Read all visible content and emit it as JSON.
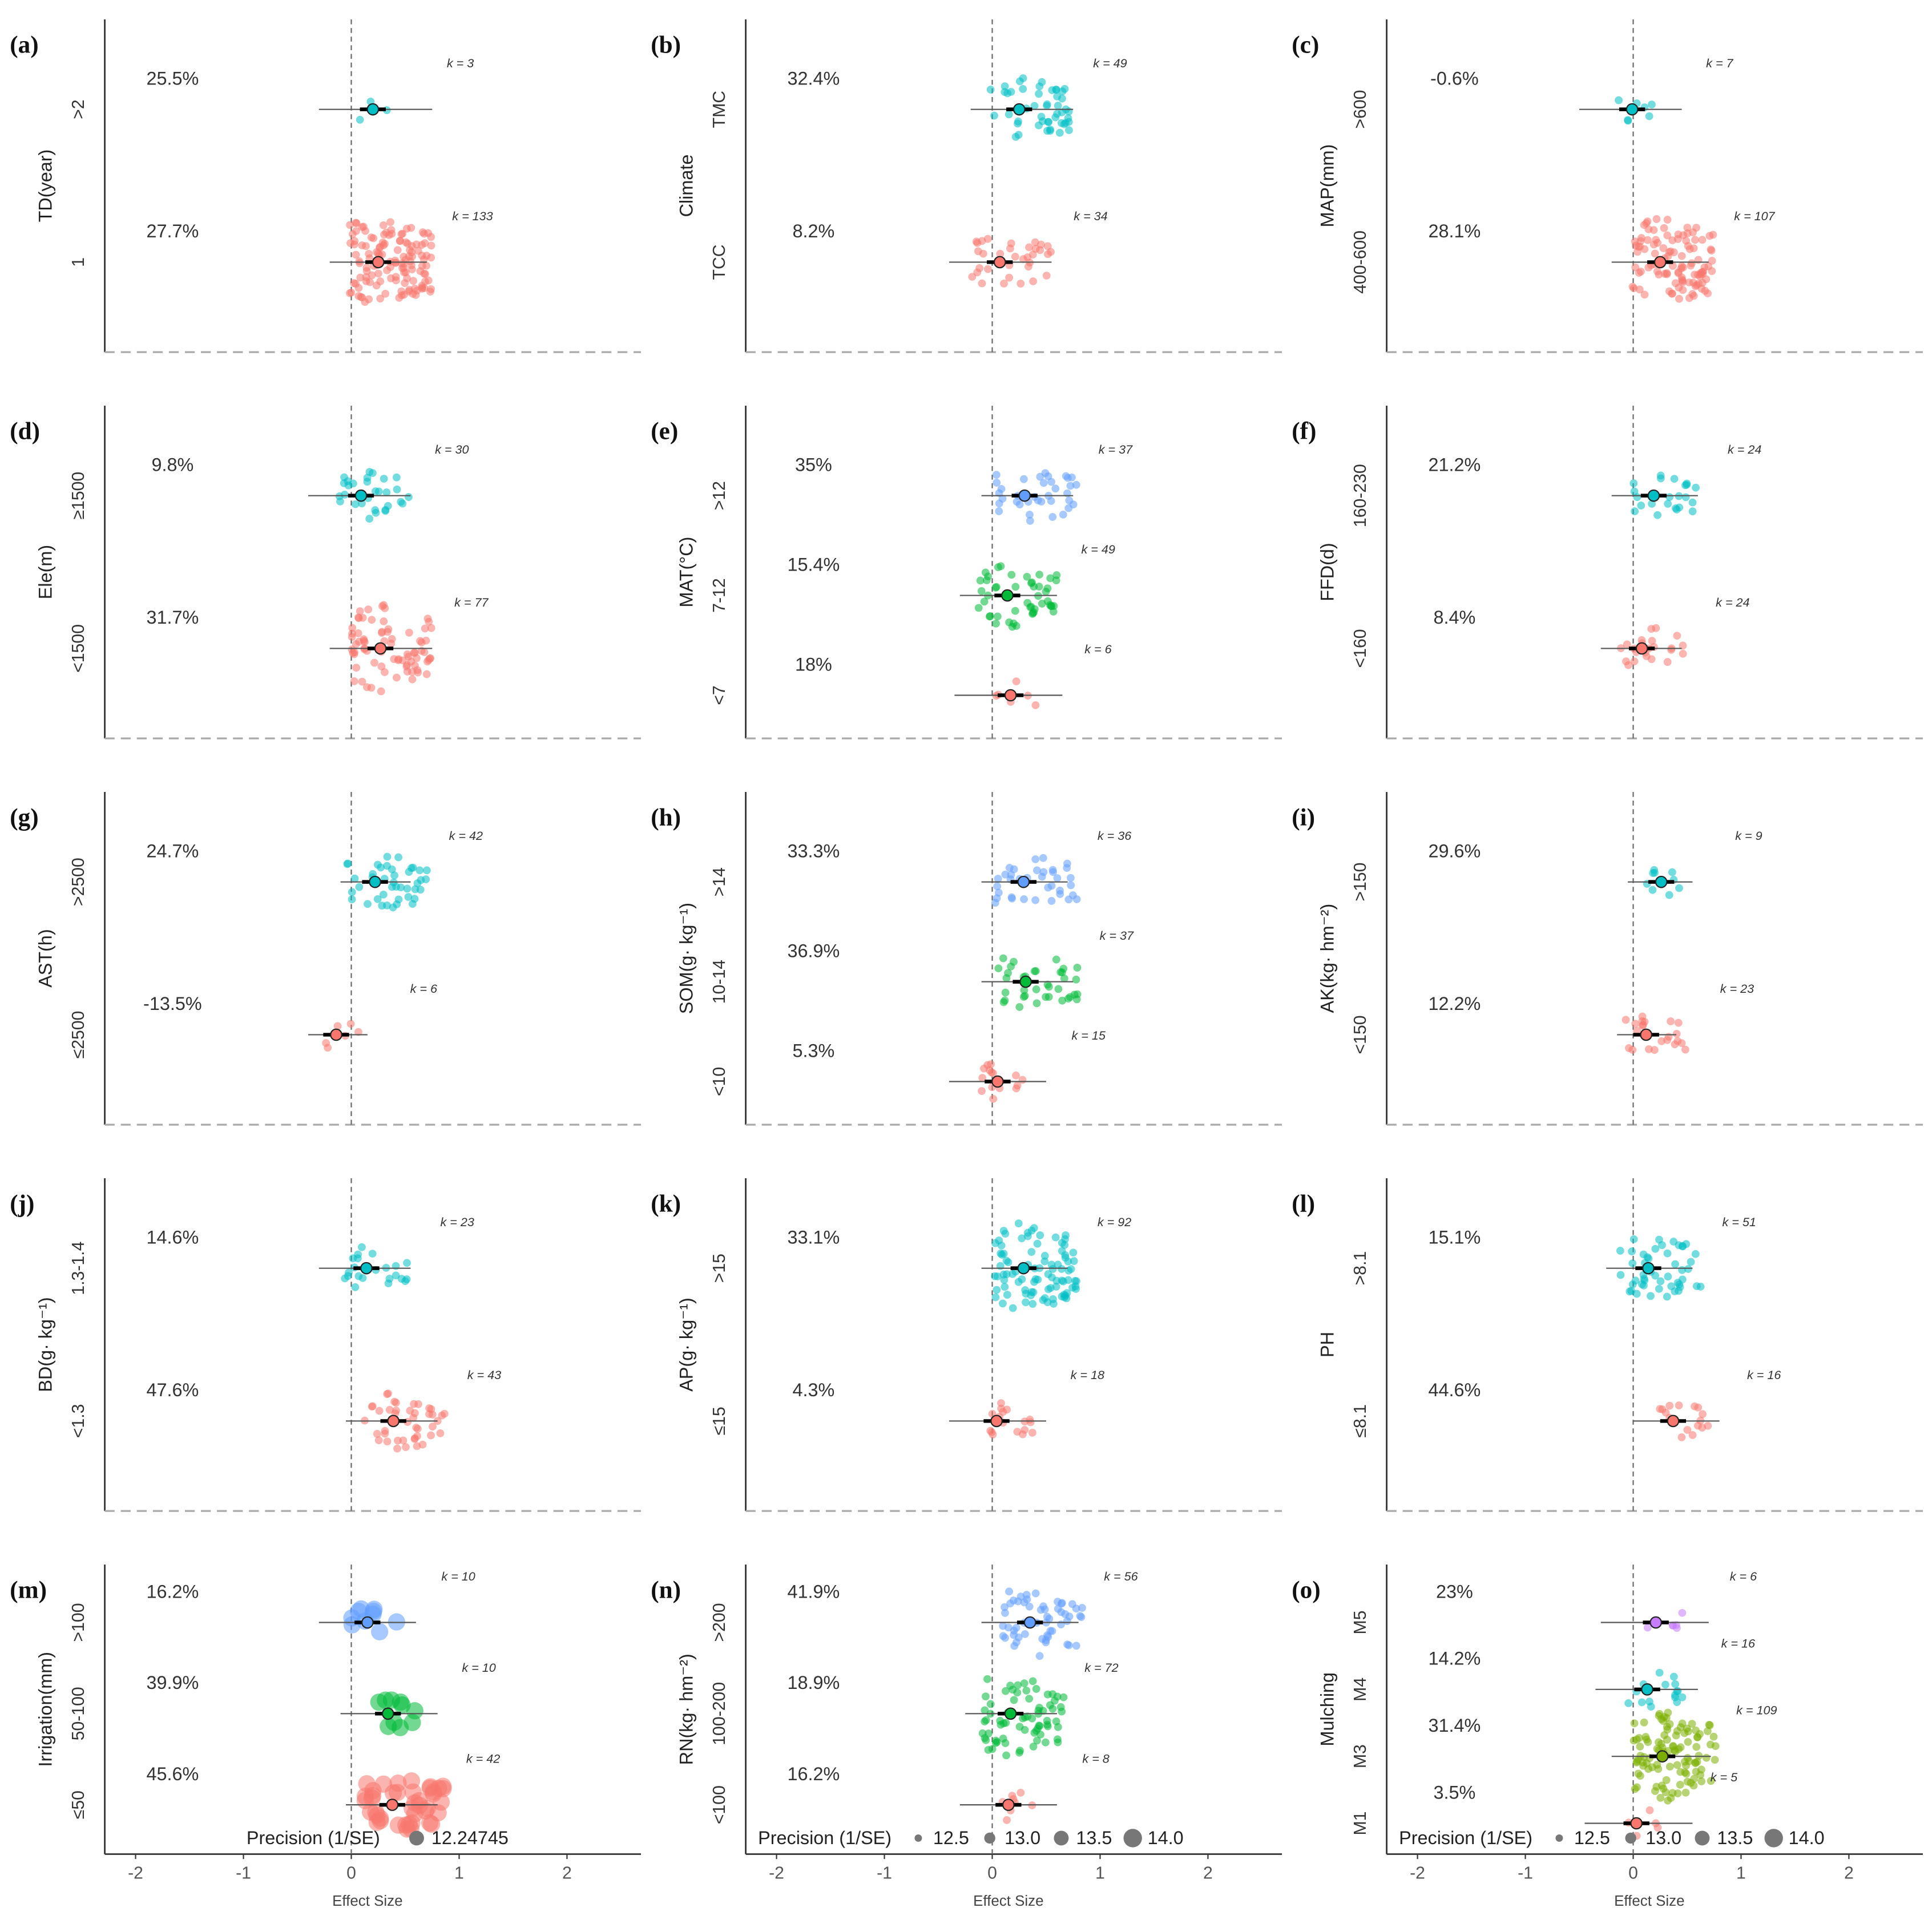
{
  "chart_data": [
    {
      "type": "scatter",
      "id": "a",
      "label": "(a)",
      "ylabel": "TD(year)",
      "groups": [
        {
          "name": ">2",
          "pct": "25.5%",
          "k": "k = 3",
          "n": 3,
          "mean": 0.2,
          "ci": [
            -0.3,
            0.75
          ],
          "color": "#00BFC4"
        },
        {
          "name": "1",
          "pct": "27.7%",
          "k": "k = 133",
          "n": 133,
          "mean": 0.25,
          "ci": [
            -0.2,
            0.7
          ],
          "color": "#F8766D"
        }
      ]
    },
    {
      "type": "scatter",
      "id": "b",
      "label": "(b)",
      "ylabel": "Climate",
      "groups": [
        {
          "name": "TMC",
          "pct": "32.4%",
          "k": "k = 49",
          "n": 49,
          "mean": 0.25,
          "ci": [
            -0.2,
            0.75
          ],
          "color": "#00BFC4"
        },
        {
          "name": "TCC",
          "pct": "8.2%",
          "k": "k = 34",
          "n": 34,
          "mean": 0.07,
          "ci": [
            -0.4,
            0.55
          ],
          "color": "#F8766D"
        }
      ]
    },
    {
      "type": "scatter",
      "id": "c",
      "label": "(c)",
      "ylabel": "MAP(mm)",
      "groups": [
        {
          "name": ">600",
          "pct": "-0.6%",
          "k": "k = 7",
          "n": 7,
          "mean": -0.01,
          "ci": [
            -0.5,
            0.45
          ],
          "color": "#00BFC4"
        },
        {
          "name": "400-600",
          "pct": "28.1%",
          "k": "k = 107",
          "n": 107,
          "mean": 0.25,
          "ci": [
            -0.2,
            0.7
          ],
          "color": "#F8766D"
        }
      ]
    },
    {
      "type": "scatter",
      "id": "d",
      "label": "(d)",
      "ylabel": "Ele(m)",
      "groups": [
        {
          "name": "≥1500",
          "pct": "9.8%",
          "k": "k = 30",
          "n": 30,
          "mean": 0.09,
          "ci": [
            -0.4,
            0.55
          ],
          "color": "#00BFC4"
        },
        {
          "name": "<1500",
          "pct": "31.7%",
          "k": "k = 77",
          "n": 77,
          "mean": 0.27,
          "ci": [
            -0.2,
            0.75
          ],
          "color": "#F8766D"
        }
      ]
    },
    {
      "type": "scatter",
      "id": "e",
      "label": "(e)",
      "ylabel": "MAT(°C)",
      "groups": [
        {
          "name": ">12",
          "pct": "35%",
          "k": "k = 37",
          "n": 37,
          "mean": 0.3,
          "ci": [
            -0.1,
            0.75
          ],
          "color": "#619CFF"
        },
        {
          "name": "7-12",
          "pct": "15.4%",
          "k": "k = 49",
          "n": 49,
          "mean": 0.14,
          "ci": [
            -0.3,
            0.6
          ],
          "color": "#00BA38"
        },
        {
          "name": "<7",
          "pct": "18%",
          "k": "k = 6",
          "n": 6,
          "mean": 0.17,
          "ci": [
            -0.35,
            0.65
          ],
          "color": "#F8766D"
        }
      ]
    },
    {
      "type": "scatter",
      "id": "f",
      "label": "(f)",
      "ylabel": "FFD(d)",
      "groups": [
        {
          "name": "160-230",
          "pct": "21.2%",
          "k": "k = 24",
          "n": 24,
          "mean": 0.19,
          "ci": [
            -0.2,
            0.6
          ],
          "color": "#00BFC4"
        },
        {
          "name": "<160",
          "pct": "8.4%",
          "k": "k = 24",
          "n": 24,
          "mean": 0.08,
          "ci": [
            -0.3,
            0.45
          ],
          "color": "#F8766D"
        }
      ]
    },
    {
      "type": "scatter",
      "id": "g",
      "label": "(g)",
      "ylabel": "AST(h)",
      "groups": [
        {
          "name": ">2500",
          "pct": "24.7%",
          "k": "k = 42",
          "n": 42,
          "mean": 0.22,
          "ci": [
            -0.1,
            0.55
          ],
          "color": "#00BFC4"
        },
        {
          "name": "≤2500",
          "pct": "-13.5%",
          "k": "k = 6",
          "n": 6,
          "mean": -0.14,
          "ci": [
            -0.4,
            0.15
          ],
          "color": "#F8766D"
        }
      ]
    },
    {
      "type": "scatter",
      "id": "h",
      "label": "(h)",
      "ylabel": "SOM(g· kg⁻¹)",
      "groups": [
        {
          "name": ">14",
          "pct": "33.3%",
          "k": "k = 36",
          "n": 36,
          "mean": 0.29,
          "ci": [
            -0.1,
            0.7
          ],
          "color": "#619CFF"
        },
        {
          "name": "10-14",
          "pct": "36.9%",
          "k": "k = 37",
          "n": 37,
          "mean": 0.31,
          "ci": [
            -0.1,
            0.75
          ],
          "color": "#00BA38"
        },
        {
          "name": "<10",
          "pct": "5.3%",
          "k": "k = 15",
          "n": 15,
          "mean": 0.05,
          "ci": [
            -0.4,
            0.5
          ],
          "color": "#F8766D"
        }
      ]
    },
    {
      "type": "scatter",
      "id": "i",
      "label": "(i)",
      "ylabel": "AK(kg· hm⁻²)",
      "groups": [
        {
          "name": ">150",
          "pct": "29.6%",
          "k": "k = 9",
          "n": 9,
          "mean": 0.26,
          "ci": [
            -0.05,
            0.55
          ],
          "color": "#00BFC4"
        },
        {
          "name": "<150",
          "pct": "12.2%",
          "k": "k = 23",
          "n": 23,
          "mean": 0.12,
          "ci": [
            -0.15,
            0.4
          ],
          "color": "#F8766D"
        }
      ]
    },
    {
      "type": "scatter",
      "id": "j",
      "label": "(j)",
      "ylabel": "BD(g· kg⁻¹)",
      "groups": [
        {
          "name": "1.3-1.4",
          "pct": "14.6%",
          "k": "k = 23",
          "n": 23,
          "mean": 0.14,
          "ci": [
            -0.3,
            0.55
          ],
          "color": "#00BFC4"
        },
        {
          "name": "<1.3",
          "pct": "47.6%",
          "k": "k = 43",
          "n": 43,
          "mean": 0.39,
          "ci": [
            -0.05,
            0.8
          ],
          "color": "#F8766D"
        }
      ]
    },
    {
      "type": "scatter",
      "id": "k",
      "label": "(k)",
      "ylabel": "AP(g· kg⁻¹)",
      "groups": [
        {
          "name": ">15",
          "pct": "33.1%",
          "k": "k = 92",
          "n": 92,
          "mean": 0.29,
          "ci": [
            -0.1,
            0.7
          ],
          "color": "#00BFC4"
        },
        {
          "name": "≤15",
          "pct": "4.3%",
          "k": "k = 18",
          "n": 18,
          "mean": 0.04,
          "ci": [
            -0.4,
            0.5
          ],
          "color": "#F8766D"
        }
      ]
    },
    {
      "type": "scatter",
      "id": "l",
      "label": "(l)",
      "ylabel": "PH",
      "groups": [
        {
          "name": ">8.1",
          "pct": "15.1%",
          "k": "k = 51",
          "n": 51,
          "mean": 0.14,
          "ci": [
            -0.25,
            0.55
          ],
          "color": "#00BFC4"
        },
        {
          "name": "≤8.1",
          "pct": "44.6%",
          "k": "k = 16",
          "n": 16,
          "mean": 0.37,
          "ci": [
            0.0,
            0.8
          ],
          "color": "#F8766D"
        }
      ]
    },
    {
      "type": "scatter",
      "id": "m",
      "label": "(m)",
      "ylabel": "Irrigation(mm)",
      "xlabel": "Effect Size",
      "xticks": [
        "-2",
        "-1",
        "0",
        "1",
        "2"
      ],
      "legend": {
        "title": "Precision (1/SE)",
        "items": [
          "12.24745"
        ]
      },
      "groups": [
        {
          "name": ">100",
          "pct": "16.2%",
          "k": "k = 10",
          "n": 10,
          "mean": 0.15,
          "ci": [
            -0.3,
            0.6
          ],
          "color": "#619CFF",
          "big": true
        },
        {
          "name": "50-100",
          "pct": "39.9%",
          "k": "k = 10",
          "n": 10,
          "mean": 0.34,
          "ci": [
            -0.1,
            0.8
          ],
          "color": "#00BA38",
          "big": true
        },
        {
          "name": "≤50",
          "pct": "45.6%",
          "k": "k = 42",
          "n": 42,
          "mean": 0.38,
          "ci": [
            -0.05,
            0.8
          ],
          "color": "#F8766D",
          "big": true
        }
      ]
    },
    {
      "type": "scatter",
      "id": "n",
      "label": "(n)",
      "ylabel": "RN(kg· hm⁻²)",
      "xlabel": "Effect Size",
      "xticks": [
        "-2",
        "-1",
        "0",
        "1",
        "2"
      ],
      "legend": {
        "title": "Precision (1/SE)",
        "items": [
          "12.5",
          "13.0",
          "13.5",
          "14.0"
        ]
      },
      "groups": [
        {
          "name": ">200",
          "pct": "41.9%",
          "k": "k = 56",
          "n": 56,
          "mean": 0.35,
          "ci": [
            -0.1,
            0.8
          ],
          "color": "#619CFF"
        },
        {
          "name": "100-200",
          "pct": "18.9%",
          "k": "k = 72",
          "n": 72,
          "mean": 0.17,
          "ci": [
            -0.25,
            0.6
          ],
          "color": "#00BA38"
        },
        {
          "name": "<100",
          "pct": "16.2%",
          "k": "k = 8",
          "n": 8,
          "mean": 0.15,
          "ci": [
            -0.3,
            0.6
          ],
          "color": "#F8766D"
        }
      ]
    },
    {
      "type": "scatter",
      "id": "o",
      "label": "(o)",
      "ylabel": "Mulching",
      "xlabel": "Effect Size",
      "xticks": [
        "-2",
        "-1",
        "0",
        "1",
        "2"
      ],
      "legend": {
        "title": "Precision (1/SE)",
        "items": [
          "12.5",
          "13.0",
          "13.5",
          "14.0"
        ]
      },
      "groups": [
        {
          "name": "M5",
          "pct": "23%",
          "k": "k = 6",
          "n": 6,
          "mean": 0.21,
          "ci": [
            -0.3,
            0.7
          ],
          "color": "#C77CFF"
        },
        {
          "name": "M4",
          "pct": "14.2%",
          "k": "k = 16",
          "n": 16,
          "mean": 0.13,
          "ci": [
            -0.35,
            0.6
          ],
          "color": "#00BFC4"
        },
        {
          "name": "M3",
          "pct": "31.4%",
          "k": "k = 109",
          "n": 109,
          "mean": 0.27,
          "ci": [
            -0.2,
            0.72
          ],
          "color": "#7CAE00"
        },
        {
          "name": "M1",
          "pct": "3.5%",
          "k": "k = 5",
          "n": 5,
          "mean": 0.03,
          "ci": [
            -0.45,
            0.55
          ],
          "color": "#F8766D"
        }
      ]
    }
  ]
}
